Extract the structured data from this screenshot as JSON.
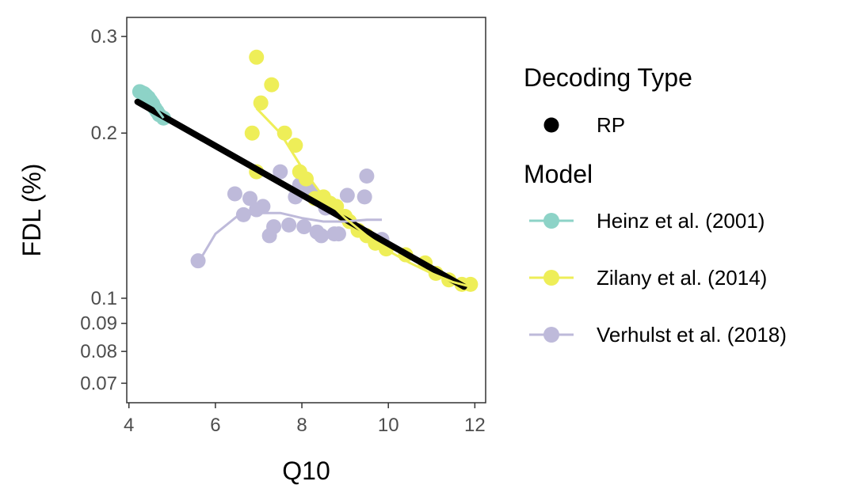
{
  "chart_data": {
    "type": "scatter",
    "xlabel": "Q10",
    "ylabel": "FDL (%)",
    "x_ticks": [
      "4",
      "6",
      "8",
      "10",
      "12"
    ],
    "x_tick_values": [
      4,
      6,
      8,
      10,
      12
    ],
    "y_ticks": [
      "0.07",
      "0.08",
      "0.09",
      "0.1",
      "0.2",
      "0.3"
    ],
    "y_tick_values": [
      0.07,
      0.08,
      0.09,
      0.1,
      0.2,
      0.3
    ],
    "xlim": [
      3.95,
      12.25
    ],
    "ylim": [
      0.0645,
      0.325
    ],
    "y_scale": "log",
    "grid": false,
    "legend": {
      "placement": "right",
      "decoding_title": "Decoding Type",
      "decoding_entries": [
        {
          "label": "RP",
          "color": "#000000"
        }
      ],
      "model_title": "Model"
    },
    "overall_fit": {
      "name": "RP",
      "color": "#000000",
      "points": [
        [
          4.2,
          0.228
        ],
        [
          11.75,
          0.105
        ]
      ]
    },
    "series": [
      {
        "name": "Heinz et al. (2001)",
        "color": "#8DD3C7",
        "points": [
          [
            4.25,
            0.238
          ],
          [
            4.3,
            0.237
          ],
          [
            4.35,
            0.236
          ],
          [
            4.4,
            0.234
          ],
          [
            4.45,
            0.232
          ],
          [
            4.5,
            0.229
          ],
          [
            4.55,
            0.226
          ],
          [
            4.6,
            0.222
          ],
          [
            4.65,
            0.219
          ],
          [
            4.7,
            0.216
          ],
          [
            4.8,
            0.213
          ]
        ],
        "fit": [
          [
            4.25,
            0.238
          ],
          [
            4.5,
            0.229
          ],
          [
            4.8,
            0.213
          ]
        ]
      },
      {
        "name": "Zilany et al. (2014)",
        "color": "#EEEE58",
        "points": [
          [
            6.95,
            0.275
          ],
          [
            7.3,
            0.245
          ],
          [
            7.05,
            0.227
          ],
          [
            6.85,
            0.2
          ],
          [
            7.6,
            0.2
          ],
          [
            7.85,
            0.19
          ],
          [
            6.95,
            0.17
          ],
          [
            7.95,
            0.17
          ],
          [
            8.1,
            0.165
          ],
          [
            8.3,
            0.152
          ],
          [
            8.5,
            0.153
          ],
          [
            8.65,
            0.149
          ],
          [
            8.8,
            0.147
          ],
          [
            9.0,
            0.141
          ],
          [
            9.1,
            0.138
          ],
          [
            9.3,
            0.133
          ],
          [
            9.5,
            0.13
          ],
          [
            9.7,
            0.126
          ],
          [
            9.95,
            0.123
          ],
          [
            10.4,
            0.12
          ],
          [
            10.85,
            0.116
          ],
          [
            11.1,
            0.111
          ],
          [
            11.4,
            0.108
          ],
          [
            11.7,
            0.106
          ],
          [
            11.9,
            0.106
          ]
        ],
        "fit": [
          [
            6.95,
            0.222
          ],
          [
            7.5,
            0.2
          ],
          [
            8.0,
            0.173
          ],
          [
            8.5,
            0.153
          ],
          [
            9.0,
            0.14
          ],
          [
            9.5,
            0.13
          ],
          [
            10.0,
            0.122
          ],
          [
            10.5,
            0.116
          ],
          [
            11.0,
            0.111
          ],
          [
            11.5,
            0.107
          ],
          [
            11.9,
            0.105
          ]
        ]
      },
      {
        "name": "Verhulst et al. (2018)",
        "color": "#BEBADA",
        "points": [
          [
            5.6,
            0.117
          ],
          [
            6.45,
            0.155
          ],
          [
            6.65,
            0.142
          ],
          [
            6.8,
            0.152
          ],
          [
            6.95,
            0.145
          ],
          [
            7.1,
            0.147
          ],
          [
            7.25,
            0.13
          ],
          [
            7.35,
            0.135
          ],
          [
            7.5,
            0.17
          ],
          [
            7.7,
            0.136
          ],
          [
            7.85,
            0.153
          ],
          [
            7.95,
            0.161
          ],
          [
            8.05,
            0.135
          ],
          [
            8.2,
            0.157
          ],
          [
            8.35,
            0.132
          ],
          [
            8.45,
            0.13
          ],
          [
            8.55,
            0.146
          ],
          [
            8.75,
            0.131
          ],
          [
            8.85,
            0.131
          ],
          [
            9.05,
            0.154
          ],
          [
            9.45,
            0.153
          ],
          [
            9.5,
            0.167
          ],
          [
            9.85,
            0.128
          ]
        ],
        "fit": [
          [
            5.6,
            0.116
          ],
          [
            6.0,
            0.131
          ],
          [
            6.5,
            0.141
          ],
          [
            7.0,
            0.143
          ],
          [
            7.5,
            0.143
          ],
          [
            8.0,
            0.14
          ],
          [
            8.5,
            0.138
          ],
          [
            9.0,
            0.138
          ],
          [
            9.5,
            0.139
          ],
          [
            9.85,
            0.139
          ]
        ]
      }
    ]
  }
}
